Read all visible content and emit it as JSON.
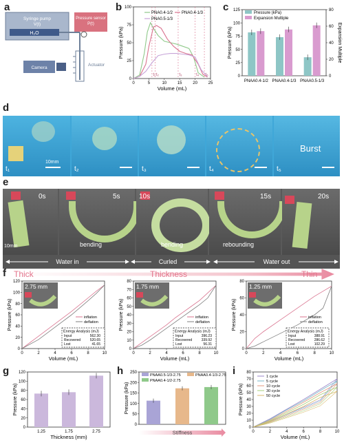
{
  "panel_labels": [
    "a",
    "b",
    "c",
    "d",
    "e",
    "f",
    "g",
    "h",
    "i"
  ],
  "a": {
    "syringe_label_1": "Syringe pump",
    "syringe_label_2": "V(t)",
    "fluid_label": "H₂O",
    "sensor_label_1": "Pressure sensor",
    "sensor_label_2": "P(t)",
    "camera_label": "Camera",
    "actuator_label": "Actuator"
  },
  "d": {
    "times": [
      "t₁",
      "t₂",
      "t₃",
      "t₄",
      "t₅"
    ],
    "scale": "10mm",
    "burst": "Burst"
  },
  "e": {
    "times": [
      "0s",
      "5s",
      "10s",
      "15s",
      "20s"
    ],
    "scale": "10mm",
    "motion_labels": [
      "bending",
      "bending",
      "rebounding"
    ],
    "phase_labels": [
      "Water in",
      "Curled",
      "Water out"
    ]
  },
  "f_header": {
    "left": "Thick",
    "center": "Thickness",
    "right": "Thin"
  },
  "chart_data": [
    {
      "id": "b",
      "type": "line",
      "xlabel": "Volume (mL)",
      "ylabel": "Pressure (kPa)",
      "xlim": [
        0,
        25
      ],
      "ylim": [
        0,
        100
      ],
      "xticks": [
        0,
        5,
        10,
        15,
        20,
        25
      ],
      "yticks": [
        0,
        25,
        50,
        75,
        100
      ],
      "series": [
        {
          "name": "PNA0.4-1/2",
          "color": "#8fc98a",
          "x": [
            0,
            2,
            3.5,
            4.5,
            5.5,
            6.5,
            8,
            10,
            12,
            14,
            16,
            18,
            19.5,
            21,
            23
          ],
          "y": [
            0,
            5,
            35,
            65,
            78,
            70,
            60,
            52,
            50,
            48,
            45,
            42,
            30,
            8,
            2
          ]
        },
        {
          "name": "PNA0.4-1/3",
          "color": "#d9728e",
          "x": [
            0,
            2,
            4,
            5,
            6.5,
            7.5,
            9,
            11,
            13,
            15,
            17,
            19,
            21,
            22.5,
            24
          ],
          "y": [
            0,
            3,
            20,
            45,
            72,
            74,
            70,
            55,
            45,
            38,
            35,
            33,
            20,
            6,
            2
          ]
        },
        {
          "name": "PNA0.5-1/3",
          "color": "#c7a4d8",
          "x": [
            0,
            2,
            4,
            6,
            8,
            10,
            12,
            14,
            16,
            18,
            20,
            22,
            24
          ],
          "y": [
            0,
            3,
            10,
            22,
            32,
            34,
            35,
            35,
            34,
            33,
            30,
            12,
            3
          ]
        }
      ],
      "markers": [
        "t₁",
        "t₂",
        "t₃",
        "t₄",
        "t₅"
      ]
    },
    {
      "id": "c",
      "type": "bar",
      "ylabel": "Pressure (kPa)",
      "ylabel_right": "Expansion Multiple",
      "ylim": [
        0,
        125
      ],
      "ylim_right": [
        0,
        80
      ],
      "yticks": [
        0,
        25,
        50,
        75,
        100,
        125
      ],
      "yticks_right": [
        0,
        20,
        40,
        60,
        80
      ],
      "categories": [
        "PNAA0.4-1/2",
        "PNAA0.4-1/3",
        "PNAA0.5-1/3"
      ],
      "series": [
        {
          "name": "Pressure (kPa)",
          "color": "#8ec6c6",
          "values": [
            82,
            73,
            35
          ]
        },
        {
          "name": "Expansion Multiple",
          "color": "#d99bcf",
          "values": [
            54,
            56,
            61
          ]
        }
      ]
    },
    {
      "id": "f1",
      "type": "line",
      "title": "2.75 mm",
      "xlabel": "Volume (mL)",
      "ylabel": "Pressure (kPa)",
      "xlim": [
        0,
        10
      ],
      "ylim": [
        0,
        120
      ],
      "xticks": [
        0,
        2,
        4,
        6,
        8,
        10
      ],
      "yticks": [
        0,
        20,
        40,
        60,
        80,
        100,
        120
      ],
      "series": [
        {
          "name": "inflation",
          "color": "#d9728e",
          "x": [
            0,
            2,
            4,
            6,
            8,
            9,
            10
          ],
          "y": [
            0,
            22,
            44,
            66,
            90,
            102,
            113
          ]
        },
        {
          "name": "deflation",
          "color": "#7e7e7e",
          "x": [
            10,
            9,
            8,
            6,
            4,
            2,
            0
          ],
          "y": [
            113,
            98,
            85,
            60,
            38,
            16,
            0
          ]
        }
      ],
      "energy": {
        "title": "Energy Analysis (mJ)",
        "rows": [
          [
            "Input",
            "562.30"
          ],
          [
            "Recovered",
            "520.65"
          ],
          [
            "Lost",
            "41.65"
          ]
        ]
      }
    },
    {
      "id": "f2",
      "type": "line",
      "title": "1.75 mm",
      "xlabel": "Volume (mL)",
      "ylabel": "Pressure (kPa)",
      "xlim": [
        0,
        10
      ],
      "ylim": [
        0,
        80
      ],
      "xticks": [
        0,
        2,
        4,
        6,
        8,
        10
      ],
      "yticks": [
        0,
        10,
        20,
        30,
        40,
        50,
        60,
        70,
        80
      ],
      "series": [
        {
          "name": "inflation",
          "color": "#d9728e",
          "x": [
            0,
            1,
            2,
            3,
            4,
            5,
            6,
            7,
            8,
            9,
            10
          ],
          "y": [
            0,
            7,
            14,
            21,
            28,
            36,
            43,
            50,
            57,
            66,
            75
          ]
        },
        {
          "name": "deflation",
          "color": "#7e7e7e",
          "x": [
            10,
            9,
            8,
            7,
            6,
            5,
            4,
            3,
            2,
            1,
            0
          ],
          "y": [
            75,
            60,
            52,
            45,
            38,
            31,
            24,
            17,
            10,
            4,
            0
          ]
        }
      ],
      "energy": {
        "title": "Energy Analysis (mJ)",
        "rows": [
          [
            "Input",
            "396.23"
          ],
          [
            "Recovered",
            "339.92"
          ],
          [
            "Lost",
            "56.31"
          ]
        ]
      }
    },
    {
      "id": "f3",
      "type": "line",
      "title": "1.25 mm",
      "xlabel": "Volume (mL)",
      "ylabel": "Pressure (kPa)",
      "xlim": [
        0,
        10
      ],
      "ylim": [
        0,
        80
      ],
      "xticks": [
        0,
        2,
        4,
        6,
        8,
        10
      ],
      "yticks": [
        0,
        20,
        40,
        60,
        80
      ],
      "series": [
        {
          "name": "inflation",
          "color": "#d9728e",
          "x": [
            0,
            1,
            2,
            4,
            6,
            8,
            9,
            10
          ],
          "y": [
            0,
            12,
            20,
            34,
            48,
            62,
            68,
            74
          ]
        },
        {
          "name": "deflation",
          "color": "#7e7e7e",
          "x": [
            10,
            9,
            8,
            6,
            4,
            2,
            1,
            0
          ],
          "y": [
            74,
            48,
            40,
            28,
            18,
            8,
            3,
            0
          ]
        }
      ],
      "energy": {
        "title": "Energy Analysis (mJ)",
        "rows": [
          [
            "Input",
            "388.91"
          ],
          [
            "Recovered",
            "286.62"
          ],
          [
            "Lost",
            "102.29"
          ]
        ]
      }
    },
    {
      "id": "g",
      "type": "bar",
      "xlabel": "Thickness (mm)",
      "ylabel": "Pressure (kPa)",
      "ylim": [
        0,
        120
      ],
      "yticks": [
        0,
        20,
        40,
        60,
        80,
        100,
        120
      ],
      "categories": [
        "1.25",
        "1.75",
        "2.75"
      ],
      "values": [
        73,
        76,
        112
      ],
      "color": "#cbb8dc"
    },
    {
      "id": "h",
      "type": "bar",
      "ylabel": "Pressure (kPa)",
      "xlabel": "Stiffness",
      "ylim": [
        0,
        250
      ],
      "yticks": [
        0,
        50,
        100,
        150,
        200,
        250
      ],
      "categories": [
        "PNAA0.5-1/3-2.75",
        "PNAA0.4-1/3-2.75",
        "PNAA0.4-1/2-2.75"
      ],
      "values": [
        113,
        172,
        178
      ],
      "colors": [
        "#a9a4d6",
        "#e7b88b",
        "#8fc98a"
      ]
    },
    {
      "id": "i",
      "type": "line",
      "xlabel": "Volume (mL)",
      "ylabel": "Pressure (kPa)",
      "xlim": [
        0,
        10
      ],
      "ylim": [
        0,
        80
      ],
      "xticks": [
        0,
        2,
        4,
        6,
        8,
        10
      ],
      "yticks": [
        0,
        10,
        20,
        30,
        40,
        50,
        60,
        70,
        80
      ],
      "series": [
        {
          "name": "1 cycle",
          "color": "#9a86c8",
          "x": [
            0,
            2,
            4,
            6,
            8,
            10
          ],
          "y": [
            0,
            12,
            26,
            40,
            55,
            70
          ]
        },
        {
          "name": "5 cycle",
          "color": "#79b7c9",
          "x": [
            0,
            2,
            4,
            6,
            8,
            10
          ],
          "y": [
            0,
            11,
            25,
            38,
            53,
            67
          ]
        },
        {
          "name": "10 cycle",
          "color": "#e59a7c",
          "x": [
            0,
            2,
            4,
            6,
            8,
            10
          ],
          "y": [
            0,
            10,
            23,
            36,
            50,
            63
          ]
        },
        {
          "name": "30 cycle",
          "color": "#a7cf78",
          "x": [
            0,
            2,
            4,
            6,
            8,
            10
          ],
          "y": [
            0,
            9,
            21,
            33,
            47,
            58
          ]
        },
        {
          "name": "50 cycle",
          "color": "#d8b968",
          "x": [
            0,
            2,
            4,
            6,
            8,
            10
          ],
          "y": [
            0,
            8,
            19,
            30,
            43,
            52
          ]
        }
      ]
    }
  ]
}
